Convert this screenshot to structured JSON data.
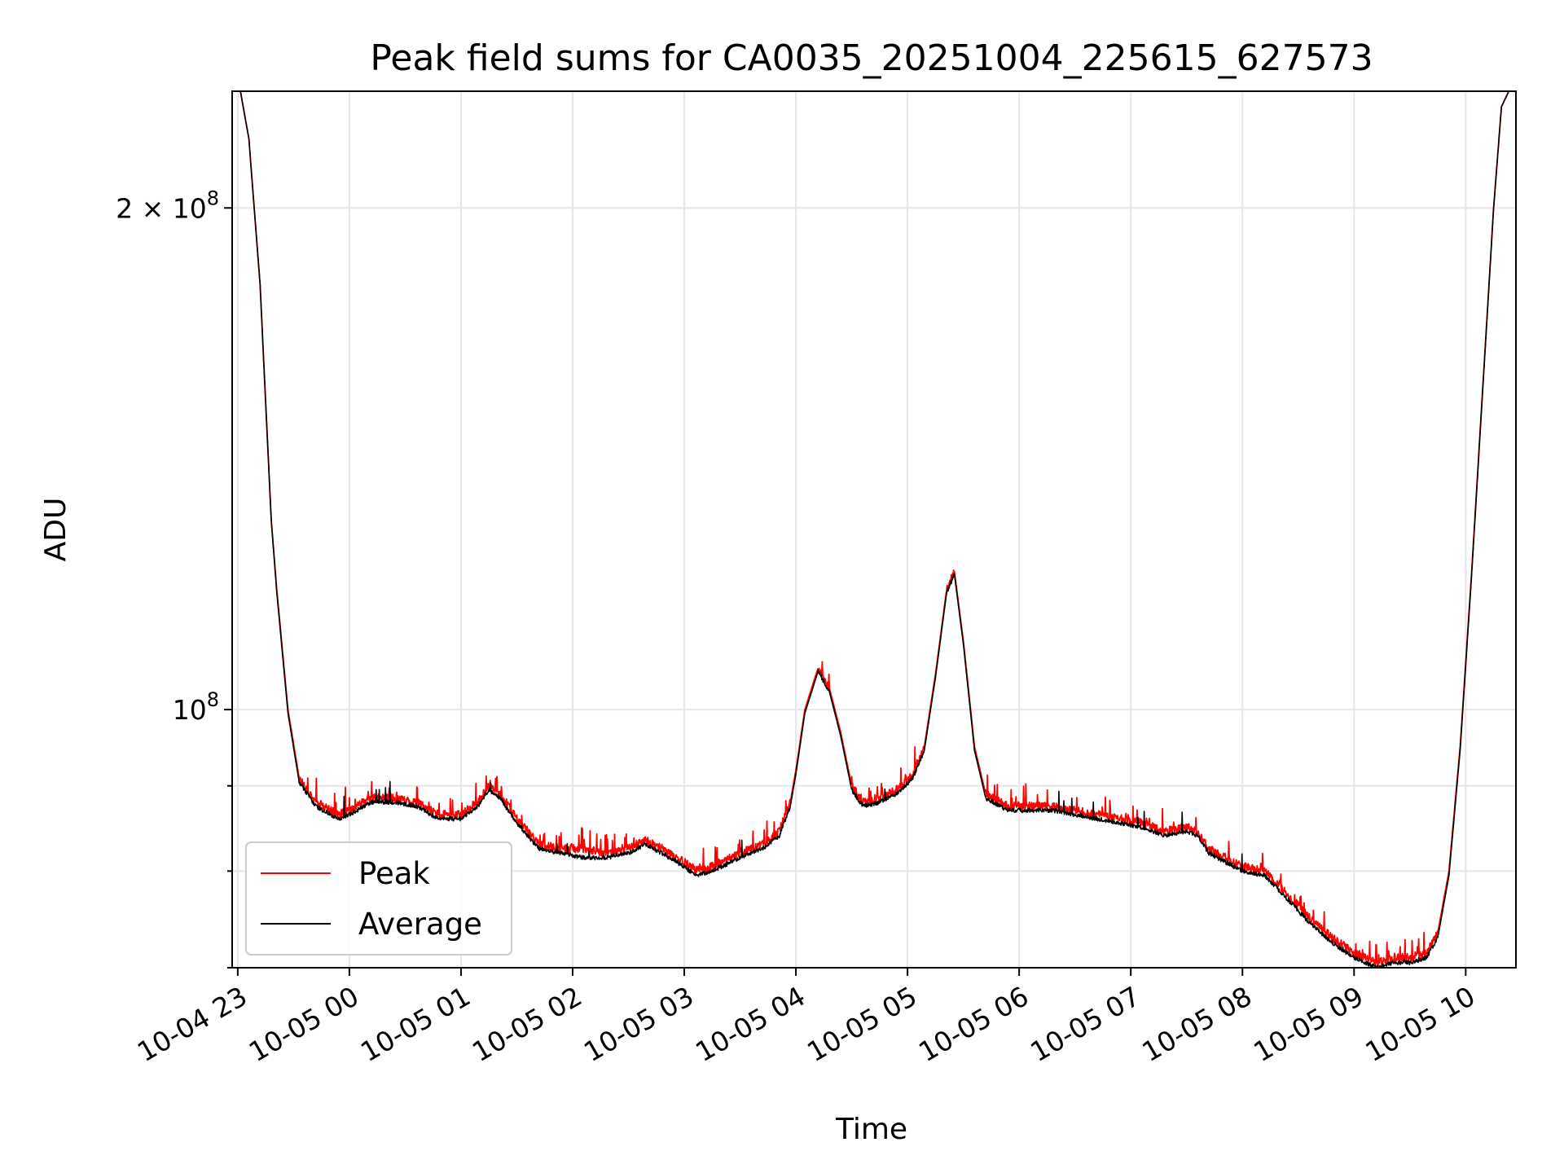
{
  "chart_data": {
    "type": "line",
    "title": "Peak field sums for CA0035_20251004_225615_627573",
    "xlabel": "Time",
    "ylabel": "ADU",
    "yscale": "log",
    "ylim": [
      70000000,
      235000000
    ],
    "xlim": [
      -0.05,
      11.45
    ],
    "x_ticks": [
      {
        "value": 0,
        "label": "10-04 23"
      },
      {
        "value": 1,
        "label": "10-05 00"
      },
      {
        "value": 2,
        "label": "10-05 01"
      },
      {
        "value": 3,
        "label": "10-05 02"
      },
      {
        "value": 4,
        "label": "10-05 03"
      },
      {
        "value": 5,
        "label": "10-05 04"
      },
      {
        "value": 6,
        "label": "10-05 05"
      },
      {
        "value": 7,
        "label": "10-05 06"
      },
      {
        "value": 8,
        "label": "10-05 07"
      },
      {
        "value": 9,
        "label": "10-05 08"
      },
      {
        "value": 10,
        "label": "10-05 09"
      },
      {
        "value": 11,
        "label": "10-05 10"
      }
    ],
    "y_ticks": [
      {
        "value": 100000000,
        "label": "10",
        "exp": "8"
      },
      {
        "value": 200000000,
        "label": "2 × 10",
        "exp": "8"
      }
    ],
    "y_minor_ticks": [
      70000000,
      80000000,
      90000000
    ],
    "grid": true,
    "legend": {
      "position": "lower-left",
      "entries": [
        "Peak",
        "Average"
      ]
    },
    "series": [
      {
        "name": "Peak",
        "color": "#ff0000",
        "points": [
          [
            0.0,
            240000000
          ],
          [
            0.1,
            220000000
          ],
          [
            0.2,
            180000000
          ],
          [
            0.3,
            130000000
          ],
          [
            0.35,
            118000000
          ],
          [
            0.45,
            100000000
          ],
          [
            0.55,
            91000000
          ],
          [
            0.7,
            88000000
          ],
          [
            0.9,
            86500000
          ],
          [
            1.0,
            87000000
          ],
          [
            1.2,
            88500000
          ],
          [
            1.4,
            88500000
          ],
          [
            1.6,
            88000000
          ],
          [
            1.8,
            86500000
          ],
          [
            2.0,
            86500000
          ],
          [
            2.15,
            88000000
          ],
          [
            2.25,
            90000000
          ],
          [
            2.35,
            89000000
          ],
          [
            2.5,
            86000000
          ],
          [
            2.7,
            83000000
          ],
          [
            2.9,
            82500000
          ],
          [
            3.1,
            82500000
          ],
          [
            3.3,
            82000000
          ],
          [
            3.5,
            82500000
          ],
          [
            3.65,
            83500000
          ],
          [
            3.8,
            82500000
          ],
          [
            4.0,
            81000000
          ],
          [
            4.1,
            80000000
          ],
          [
            4.25,
            80500000
          ],
          [
            4.5,
            82000000
          ],
          [
            4.7,
            83000000
          ],
          [
            4.85,
            84500000
          ],
          [
            4.95,
            88000000
          ],
          [
            5.0,
            92000000
          ],
          [
            5.08,
            100000000
          ],
          [
            5.2,
            106000000
          ],
          [
            5.3,
            103000000
          ],
          [
            5.4,
            97000000
          ],
          [
            5.5,
            90000000
          ],
          [
            5.6,
            88000000
          ],
          [
            5.75,
            88500000
          ],
          [
            5.9,
            89500000
          ],
          [
            6.05,
            91500000
          ],
          [
            6.15,
            95000000
          ],
          [
            6.25,
            105000000
          ],
          [
            6.35,
            118000000
          ],
          [
            6.42,
            121000000
          ],
          [
            6.5,
            110000000
          ],
          [
            6.6,
            95000000
          ],
          [
            6.7,
            89000000
          ],
          [
            6.9,
            87500000
          ],
          [
            7.1,
            87500000
          ],
          [
            7.3,
            87500000
          ],
          [
            7.5,
            87000000
          ],
          [
            7.7,
            86500000
          ],
          [
            7.9,
            86000000
          ],
          [
            8.1,
            85500000
          ],
          [
            8.3,
            84500000
          ],
          [
            8.5,
            85000000
          ],
          [
            8.6,
            84500000
          ],
          [
            8.7,
            82500000
          ],
          [
            8.85,
            81500000
          ],
          [
            9.0,
            80500000
          ],
          [
            9.2,
            80000000
          ],
          [
            9.4,
            77500000
          ],
          [
            9.6,
            75000000
          ],
          [
            9.8,
            73000000
          ],
          [
            10.0,
            71500000
          ],
          [
            10.2,
            70500000
          ],
          [
            10.35,
            71000000
          ],
          [
            10.5,
            71000000
          ],
          [
            10.65,
            71500000
          ],
          [
            10.75,
            73500000
          ],
          [
            10.85,
            80000000
          ],
          [
            10.95,
            95000000
          ],
          [
            11.05,
            120000000
          ],
          [
            11.15,
            155000000
          ],
          [
            11.25,
            200000000
          ],
          [
            11.32,
            230000000
          ],
          [
            11.45,
            240000000
          ]
        ]
      },
      {
        "name": "Average",
        "color": "#000000",
        "points": [
          [
            0.0,
            240000000
          ],
          [
            0.1,
            220000000
          ],
          [
            0.2,
            180000000
          ],
          [
            0.3,
            130000000
          ],
          [
            0.35,
            117500000
          ],
          [
            0.45,
            99500000
          ],
          [
            0.55,
            90500000
          ],
          [
            0.7,
            87500000
          ],
          [
            0.9,
            86000000
          ],
          [
            1.0,
            86500000
          ],
          [
            1.2,
            88000000
          ],
          [
            1.4,
            88000000
          ],
          [
            1.6,
            87500000
          ],
          [
            1.8,
            86000000
          ],
          [
            2.0,
            86000000
          ],
          [
            2.15,
            87500000
          ],
          [
            2.25,
            89500000
          ],
          [
            2.35,
            88500000
          ],
          [
            2.5,
            85500000
          ],
          [
            2.7,
            82500000
          ],
          [
            2.9,
            82000000
          ],
          [
            3.1,
            81500000
          ],
          [
            3.3,
            81500000
          ],
          [
            3.5,
            82000000
          ],
          [
            3.65,
            83000000
          ],
          [
            3.8,
            82000000
          ],
          [
            4.0,
            80500000
          ],
          [
            4.1,
            79500000
          ],
          [
            4.25,
            80000000
          ],
          [
            4.5,
            81500000
          ],
          [
            4.7,
            82500000
          ],
          [
            4.85,
            84000000
          ],
          [
            4.95,
            87500000
          ],
          [
            5.0,
            91500000
          ],
          [
            5.08,
            99500000
          ],
          [
            5.2,
            105500000
          ],
          [
            5.3,
            102500000
          ],
          [
            5.4,
            96500000
          ],
          [
            5.5,
            89500000
          ],
          [
            5.6,
            87500000
          ],
          [
            5.75,
            88000000
          ],
          [
            5.9,
            89000000
          ],
          [
            6.05,
            91000000
          ],
          [
            6.15,
            94500000
          ],
          [
            6.25,
            104500000
          ],
          [
            6.35,
            117500000
          ],
          [
            6.42,
            120500000
          ],
          [
            6.5,
            109500000
          ],
          [
            6.6,
            94500000
          ],
          [
            6.7,
            88500000
          ],
          [
            6.9,
            87000000
          ],
          [
            7.1,
            87000000
          ],
          [
            7.3,
            87000000
          ],
          [
            7.5,
            86500000
          ],
          [
            7.7,
            86000000
          ],
          [
            7.9,
            85500000
          ],
          [
            8.1,
            85000000
          ],
          [
            8.3,
            84000000
          ],
          [
            8.5,
            84500000
          ],
          [
            8.6,
            84000000
          ],
          [
            8.7,
            82000000
          ],
          [
            8.85,
            81000000
          ],
          [
            9.0,
            80000000
          ],
          [
            9.2,
            79500000
          ],
          [
            9.4,
            77000000
          ],
          [
            9.6,
            74500000
          ],
          [
            9.8,
            72500000
          ],
          [
            10.0,
            71000000
          ],
          [
            10.2,
            70000000
          ],
          [
            10.35,
            70500000
          ],
          [
            10.5,
            70500000
          ],
          [
            10.65,
            71000000
          ],
          [
            10.75,
            73000000
          ],
          [
            10.85,
            79500000
          ],
          [
            10.95,
            94500000
          ],
          [
            11.05,
            119500000
          ],
          [
            11.15,
            154500000
          ],
          [
            11.25,
            200000000
          ],
          [
            11.32,
            230000000
          ],
          [
            11.45,
            240000000
          ]
        ]
      }
    ]
  }
}
